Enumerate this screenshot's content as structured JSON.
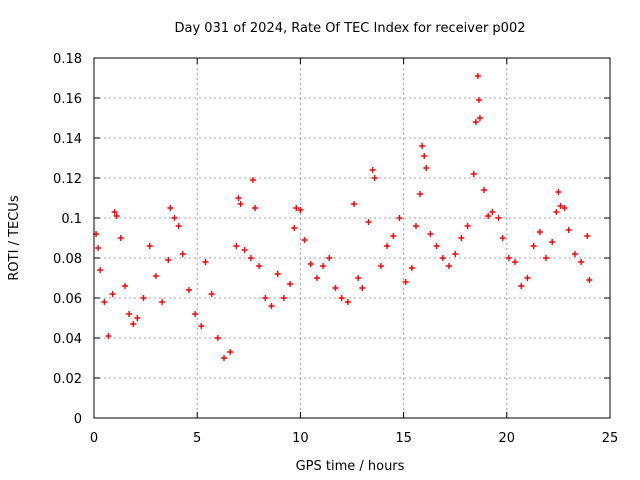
{
  "chart_data": {
    "type": "scatter",
    "title": "Day 031 of 2024, Rate Of TEC Index for receiver p002",
    "xlabel": "GPS time / hours",
    "ylabel": "ROTI / TECUs",
    "xlim": [
      0,
      25
    ],
    "ylim": [
      0,
      0.18
    ],
    "x_ticks": [
      0,
      5,
      10,
      15,
      20,
      25
    ],
    "x_tick_labels": [
      "0",
      "5",
      "10",
      "15",
      "20",
      "25"
    ],
    "y_ticks": [
      0,
      0.02,
      0.04,
      0.06,
      0.08,
      0.1,
      0.12,
      0.14,
      0.16,
      0.18
    ],
    "y_tick_labels": [
      "0",
      "0.02",
      "0.04",
      "0.06",
      "0.08",
      "0.1",
      "0.12",
      "0.14",
      "0.16",
      "0.18"
    ],
    "grid": true,
    "marker": "+",
    "color": "#ff0000",
    "series": [
      {
        "name": "ROTI",
        "points": [
          [
            0.1,
            0.092
          ],
          [
            0.2,
            0.085
          ],
          [
            0.3,
            0.074
          ],
          [
            0.5,
            0.058
          ],
          [
            0.7,
            0.041
          ],
          [
            0.9,
            0.062
          ],
          [
            1.0,
            0.103
          ],
          [
            1.1,
            0.101
          ],
          [
            1.3,
            0.09
          ],
          [
            1.5,
            0.066
          ],
          [
            1.7,
            0.052
          ],
          [
            1.9,
            0.047
          ],
          [
            2.1,
            0.05
          ],
          [
            2.4,
            0.06
          ],
          [
            2.7,
            0.086
          ],
          [
            3.0,
            0.071
          ],
          [
            3.3,
            0.058
          ],
          [
            3.6,
            0.079
          ],
          [
            3.7,
            0.105
          ],
          [
            3.9,
            0.1
          ],
          [
            4.1,
            0.096
          ],
          [
            4.3,
            0.082
          ],
          [
            4.6,
            0.064
          ],
          [
            4.9,
            0.052
          ],
          [
            5.2,
            0.046
          ],
          [
            5.4,
            0.078
          ],
          [
            5.7,
            0.062
          ],
          [
            6.0,
            0.04
          ],
          [
            6.3,
            0.03
          ],
          [
            6.6,
            0.033
          ],
          [
            6.9,
            0.086
          ],
          [
            7.0,
            0.11
          ],
          [
            7.1,
            0.107
          ],
          [
            7.3,
            0.084
          ],
          [
            7.6,
            0.08
          ],
          [
            7.7,
            0.119
          ],
          [
            7.8,
            0.105
          ],
          [
            8.0,
            0.076
          ],
          [
            8.3,
            0.06
          ],
          [
            8.6,
            0.056
          ],
          [
            8.9,
            0.072
          ],
          [
            9.2,
            0.06
          ],
          [
            9.5,
            0.067
          ],
          [
            9.7,
            0.095
          ],
          [
            9.8,
            0.105
          ],
          [
            10.0,
            0.104
          ],
          [
            10.2,
            0.089
          ],
          [
            10.5,
            0.077
          ],
          [
            10.8,
            0.07
          ],
          [
            11.1,
            0.076
          ],
          [
            11.4,
            0.08
          ],
          [
            11.7,
            0.065
          ],
          [
            12.0,
            0.06
          ],
          [
            12.3,
            0.058
          ],
          [
            12.6,
            0.107
          ],
          [
            12.8,
            0.07
          ],
          [
            13.0,
            0.065
          ],
          [
            13.3,
            0.098
          ],
          [
            13.5,
            0.124
          ],
          [
            13.6,
            0.12
          ],
          [
            13.9,
            0.076
          ],
          [
            14.2,
            0.086
          ],
          [
            14.5,
            0.091
          ],
          [
            14.8,
            0.1
          ],
          [
            15.1,
            0.068
          ],
          [
            15.4,
            0.075
          ],
          [
            15.6,
            0.096
          ],
          [
            15.8,
            0.112
          ],
          [
            15.9,
            0.136
          ],
          [
            16.0,
            0.131
          ],
          [
            16.1,
            0.125
          ],
          [
            16.3,
            0.092
          ],
          [
            16.6,
            0.086
          ],
          [
            16.9,
            0.08
          ],
          [
            17.2,
            0.076
          ],
          [
            17.5,
            0.082
          ],
          [
            17.8,
            0.09
          ],
          [
            18.1,
            0.096
          ],
          [
            18.4,
            0.122
          ],
          [
            18.5,
            0.148
          ],
          [
            18.6,
            0.171
          ],
          [
            18.65,
            0.159
          ],
          [
            18.7,
            0.15
          ],
          [
            18.9,
            0.114
          ],
          [
            19.1,
            0.101
          ],
          [
            19.3,
            0.103
          ],
          [
            19.6,
            0.1
          ],
          [
            19.8,
            0.09
          ],
          [
            20.1,
            0.08
          ],
          [
            20.4,
            0.078
          ],
          [
            20.7,
            0.066
          ],
          [
            21.0,
            0.07
          ],
          [
            21.3,
            0.086
          ],
          [
            21.6,
            0.093
          ],
          [
            21.9,
            0.08
          ],
          [
            22.2,
            0.088
          ],
          [
            22.4,
            0.103
          ],
          [
            22.5,
            0.113
          ],
          [
            22.6,
            0.106
          ],
          [
            22.8,
            0.105
          ],
          [
            23.0,
            0.094
          ],
          [
            23.3,
            0.082
          ],
          [
            23.6,
            0.078
          ],
          [
            23.9,
            0.091
          ],
          [
            24.0,
            0.069
          ]
        ]
      }
    ]
  }
}
